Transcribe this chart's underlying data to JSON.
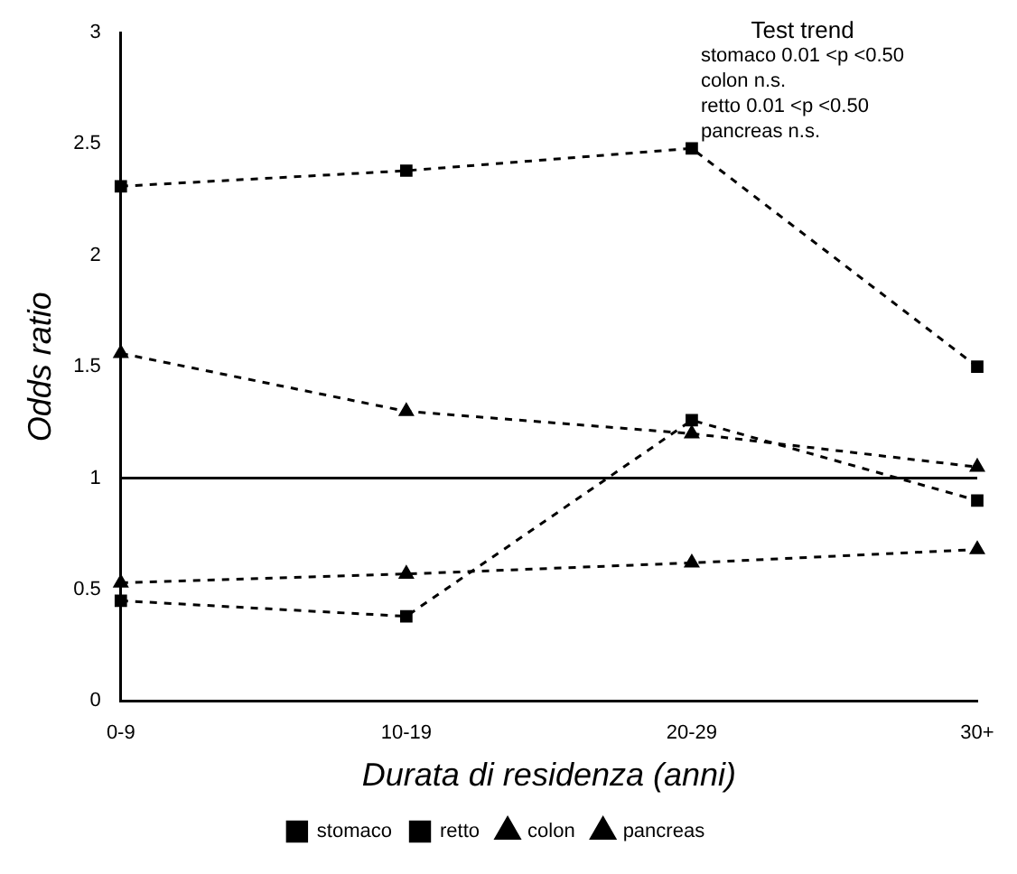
{
  "chart_data": {
    "type": "line",
    "xlabel": "Durata di residenza (anni)",
    "ylabel": "Odds ratio",
    "categories": [
      "0-9",
      "10-19",
      "20-29",
      "30+"
    ],
    "series": [
      {
        "name": "stomaco",
        "color": "#000000",
        "marker": "square",
        "values": [
          2.31,
          2.38,
          2.48,
          1.5
        ]
      },
      {
        "name": "retto",
        "color": "#000000",
        "marker": "square",
        "values": [
          0.45,
          0.38,
          1.26,
          0.9
        ]
      },
      {
        "name": "colon",
        "color": "#000000",
        "marker": "triangle",
        "values": [
          0.53,
          0.57,
          0.62,
          0.68
        ]
      },
      {
        "name": "pancreas",
        "color": "#000000",
        "marker": "triangle",
        "values": [
          1.56,
          1.3,
          1.2,
          1.05
        ]
      }
    ],
    "ylim": [
      0,
      3
    ],
    "yticks": [
      0,
      0.5,
      1,
      1.5,
      2,
      2.5,
      3
    ],
    "grid": false,
    "legend": "bottom",
    "line_style": "dashed",
    "ref_lines": [
      {
        "axis": "y",
        "value": 1,
        "color": "#000000",
        "line_style": "solid"
      }
    ],
    "annotations": [
      "Test trend",
      "stomaco 0.01 <p <0.50",
      "colon n.s.",
      "retto 0.01 <p <0.50",
      "pancreas n.s."
    ]
  }
}
